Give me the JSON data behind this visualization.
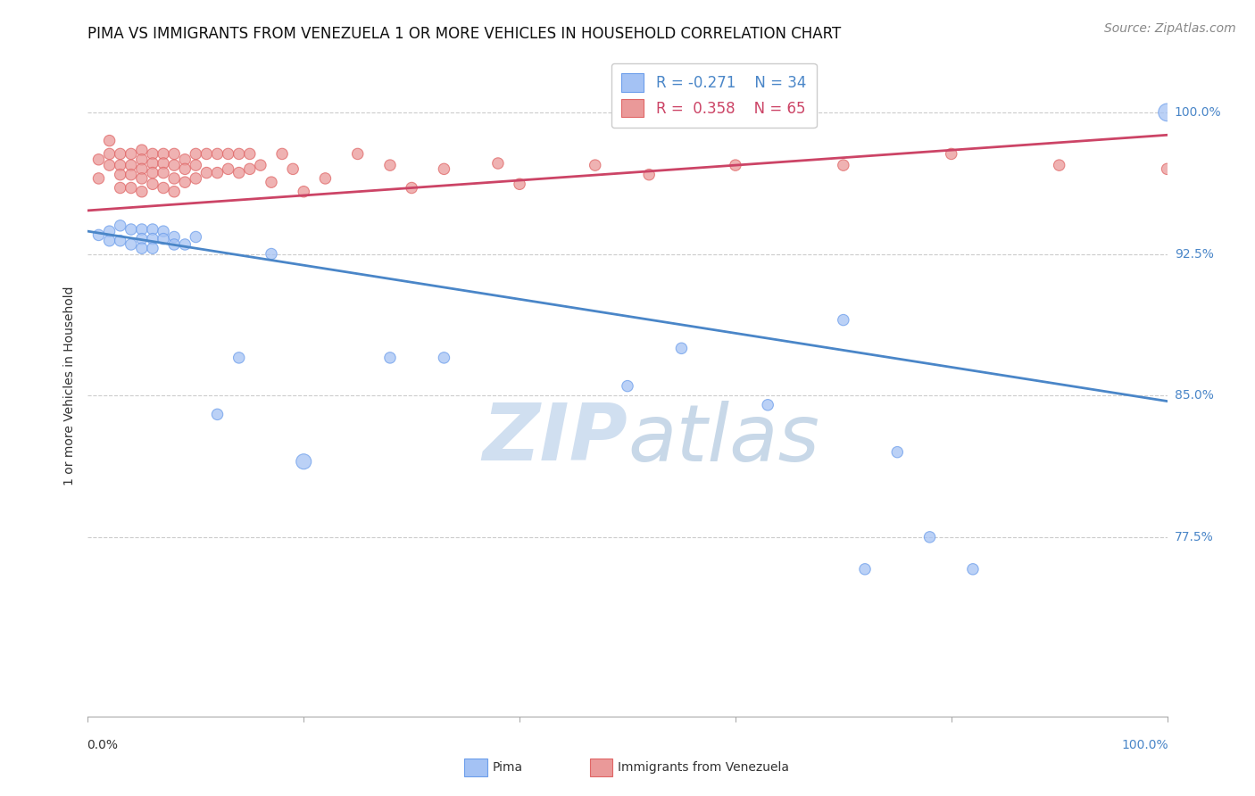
{
  "title": "PIMA VS IMMIGRANTS FROM VENEZUELA 1 OR MORE VEHICLES IN HOUSEHOLD CORRELATION CHART",
  "source": "Source: ZipAtlas.com",
  "ylabel": "1 or more Vehicles in Household",
  "ytick_labels": [
    "100.0%",
    "92.5%",
    "85.0%",
    "77.5%"
  ],
  "ytick_values": [
    1.0,
    0.925,
    0.85,
    0.775
  ],
  "xlim": [
    0.0,
    1.0
  ],
  "ylim": [
    0.68,
    1.03
  ],
  "legend_R_blue": "R = -0.271",
  "legend_N_blue": "N = 34",
  "legend_R_pink": "R =  0.358",
  "legend_N_pink": "N = 65",
  "blue_color": "#a4c2f4",
  "pink_color": "#ea9999",
  "blue_edge_color": "#6d9eeb",
  "pink_edge_color": "#e06666",
  "blue_line_color": "#4a86c8",
  "pink_line_color": "#cc4466",
  "watermark_color": "#d0dff0",
  "blue_line_y_start": 0.937,
  "blue_line_y_end": 0.847,
  "pink_line_y_start": 0.948,
  "pink_line_y_end": 0.988,
  "blue_scatter_x": [
    0.01,
    0.02,
    0.02,
    0.03,
    0.03,
    0.04,
    0.04,
    0.05,
    0.05,
    0.05,
    0.06,
    0.06,
    0.06,
    0.07,
    0.07,
    0.08,
    0.08,
    0.09,
    0.1,
    0.12,
    0.14,
    0.17,
    0.2,
    0.28,
    0.33,
    0.5,
    0.55,
    0.63,
    0.7,
    0.72,
    0.75,
    0.78,
    0.82,
    1.0
  ],
  "blue_scatter_y": [
    0.935,
    0.937,
    0.932,
    0.94,
    0.932,
    0.938,
    0.93,
    0.938,
    0.933,
    0.928,
    0.938,
    0.933,
    0.928,
    0.937,
    0.933,
    0.934,
    0.93,
    0.93,
    0.934,
    0.84,
    0.87,
    0.925,
    0.815,
    0.87,
    0.87,
    0.855,
    0.875,
    0.845,
    0.89,
    0.758,
    0.82,
    0.775,
    0.758,
    1.0
  ],
  "blue_scatter_size": [
    80,
    80,
    80,
    80,
    80,
    80,
    80,
    80,
    80,
    80,
    80,
    80,
    80,
    80,
    80,
    80,
    80,
    80,
    80,
    80,
    80,
    80,
    150,
    80,
    80,
    80,
    80,
    80,
    80,
    80,
    80,
    80,
    80,
    200
  ],
  "pink_scatter_x": [
    0.01,
    0.01,
    0.02,
    0.02,
    0.02,
    0.03,
    0.03,
    0.03,
    0.03,
    0.04,
    0.04,
    0.04,
    0.04,
    0.05,
    0.05,
    0.05,
    0.05,
    0.05,
    0.06,
    0.06,
    0.06,
    0.06,
    0.07,
    0.07,
    0.07,
    0.07,
    0.08,
    0.08,
    0.08,
    0.08,
    0.09,
    0.09,
    0.09,
    0.1,
    0.1,
    0.1,
    0.11,
    0.11,
    0.12,
    0.12,
    0.13,
    0.13,
    0.14,
    0.14,
    0.15,
    0.15,
    0.16,
    0.17,
    0.18,
    0.19,
    0.2,
    0.22,
    0.25,
    0.28,
    0.3,
    0.33,
    0.38,
    0.4,
    0.47,
    0.52,
    0.6,
    0.7,
    0.8,
    0.9,
    1.0
  ],
  "pink_scatter_y": [
    0.975,
    0.965,
    0.985,
    0.978,
    0.972,
    0.978,
    0.972,
    0.967,
    0.96,
    0.978,
    0.972,
    0.967,
    0.96,
    0.98,
    0.975,
    0.97,
    0.965,
    0.958,
    0.978,
    0.973,
    0.968,
    0.962,
    0.978,
    0.973,
    0.968,
    0.96,
    0.978,
    0.972,
    0.965,
    0.958,
    0.975,
    0.97,
    0.963,
    0.978,
    0.972,
    0.965,
    0.978,
    0.968,
    0.978,
    0.968,
    0.978,
    0.97,
    0.978,
    0.968,
    0.978,
    0.97,
    0.972,
    0.963,
    0.978,
    0.97,
    0.958,
    0.965,
    0.978,
    0.972,
    0.96,
    0.97,
    0.973,
    0.962,
    0.972,
    0.967,
    0.972,
    0.972,
    0.978,
    0.972,
    0.97
  ],
  "pink_scatter_size": [
    80,
    80,
    80,
    80,
    80,
    80,
    80,
    80,
    80,
    80,
    80,
    80,
    80,
    80,
    80,
    80,
    80,
    80,
    80,
    80,
    80,
    80,
    80,
    80,
    80,
    80,
    80,
    80,
    80,
    80,
    80,
    80,
    80,
    80,
    80,
    80,
    80,
    80,
    80,
    80,
    80,
    80,
    80,
    80,
    80,
    80,
    80,
    80,
    80,
    80,
    80,
    80,
    80,
    80,
    80,
    80,
    80,
    80,
    80,
    80,
    80,
    80,
    80,
    80,
    80
  ],
  "grid_color": "#cccccc",
  "background_color": "#ffffff",
  "title_fontsize": 12,
  "axis_label_fontsize": 10,
  "tick_fontsize": 10,
  "source_fontsize": 10,
  "legend_fontsize": 12
}
